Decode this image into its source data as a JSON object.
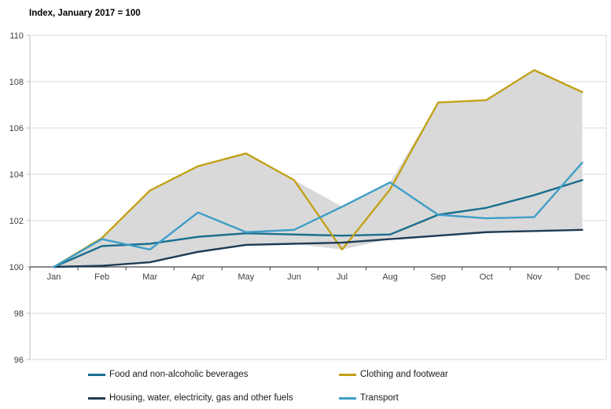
{
  "title": "Index, January 2017 = 100",
  "chart_data": {
    "type": "line",
    "title": "Index, January 2017 = 100",
    "categories": [
      "Jan",
      "Feb",
      "Mar",
      "Apr",
      "May",
      "Jun",
      "Jul",
      "Aug",
      "Sep",
      "Oct",
      "Nov",
      "Dec"
    ],
    "xlabel": "",
    "ylabel": "Index, January 2017 = 100",
    "ylim": [
      96,
      110
    ],
    "yticks": [
      96,
      98,
      100,
      102,
      104,
      106,
      108,
      110
    ],
    "axis_cross_value": 100,
    "grid": true,
    "legend_position": "bottom",
    "band": {
      "description": "shaded min-max range across all four series",
      "color": "#d9d9d9"
    },
    "series": [
      {
        "name": "Food and non-alcoholic beverages",
        "color": "#1a6e8e",
        "values": [
          100,
          100.9,
          101.0,
          101.3,
          101.45,
          101.4,
          101.35,
          101.4,
          102.25,
          102.55,
          103.1,
          103.75
        ]
      },
      {
        "name": "Clothing and footwear",
        "color": "#c3a118",
        "values": [
          100,
          101.25,
          103.3,
          104.35,
          104.9,
          103.75,
          100.75,
          103.35,
          107.1,
          107.2,
          108.5,
          107.55
        ]
      },
      {
        "name": "Housing, water, electricity, gas and other fuels",
        "color": "#1f3b54",
        "values": [
          100,
          100.05,
          100.2,
          100.65,
          100.95,
          101.0,
          101.05,
          101.2,
          101.35,
          101.5,
          101.55,
          101.6
        ]
      },
      {
        "name": "Transport",
        "color": "#3e9ec8",
        "values": [
          100,
          101.2,
          100.75,
          102.35,
          101.5,
          101.6,
          102.6,
          103.65,
          102.25,
          102.1,
          102.15,
          104.5
        ]
      }
    ],
    "colors": {
      "gridline": "#d9d9d9",
      "y_axis": "#bfbfbf",
      "x_axis": "#404040",
      "band": "#d9d9d9",
      "text": "#404040"
    }
  }
}
